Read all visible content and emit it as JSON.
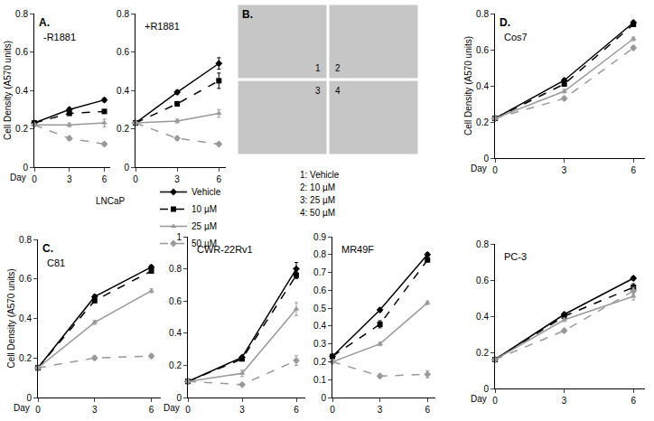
{
  "chart_data": [
    {
      "type": "line",
      "panel": "A.",
      "title": "-R1881",
      "y_label": "Cell Density (A570 units)",
      "x_label": "Day",
      "x": [
        0,
        3,
        6
      ],
      "xlim": [
        0,
        6.5
      ],
      "xticks": [
        0,
        3,
        6
      ],
      "ylim": [
        0,
        0.8
      ],
      "yticks": [
        0,
        0.2,
        0.4,
        0.6,
        0.8
      ],
      "series": [
        {
          "name": "Vehicle",
          "color": "#000000",
          "marker": "diamond",
          "line_style": "solid",
          "values": [
            0.23,
            0.3,
            0.35
          ],
          "errors": [
            0,
            0.01,
            0.01
          ]
        },
        {
          "name": "10 µM",
          "color": "#000000",
          "marker": "square",
          "line_style": "dash",
          "values": [
            0.23,
            0.28,
            0.29
          ],
          "errors": [
            0,
            0.01,
            0.01
          ]
        },
        {
          "name": "25 µM",
          "color": "#999999",
          "marker": "triangle",
          "line_style": "solid",
          "values": [
            0.22,
            0.22,
            0.23
          ],
          "errors": [
            0,
            0.01,
            0.02
          ]
        },
        {
          "name": "50 µM",
          "color": "#999999",
          "marker": "diamond",
          "line_style": "dash",
          "values": [
            0.22,
            0.15,
            0.12
          ],
          "errors": [
            0,
            0.01,
            0.01
          ]
        }
      ]
    },
    {
      "type": "line",
      "title": "+R1881",
      "annotations": [
        "LNCaP"
      ],
      "legend": "bottom right",
      "x": [
        0,
        3,
        6
      ],
      "xlim": [
        0,
        6.5
      ],
      "xticks": [
        0,
        3,
        6
      ],
      "ylim": [
        0,
        0.8
      ],
      "yticks": [
        0,
        0.2,
        0.4,
        0.6,
        0.8
      ],
      "series": [
        {
          "name": "Vehicle",
          "color": "#000000",
          "marker": "diamond",
          "line_style": "solid",
          "values": [
            0.23,
            0.39,
            0.54
          ],
          "errors": [
            0,
            0.01,
            0.03
          ]
        },
        {
          "name": "10 µM",
          "color": "#000000",
          "marker": "square",
          "line_style": "dash",
          "values": [
            0.23,
            0.33,
            0.45
          ],
          "errors": [
            0,
            0.01,
            0.04
          ]
        },
        {
          "name": "25 µM",
          "color": "#999999",
          "marker": "triangle",
          "line_style": "solid",
          "values": [
            0.23,
            0.24,
            0.28
          ],
          "errors": [
            0,
            0.01,
            0.02
          ]
        },
        {
          "name": "50 µM",
          "color": "#999999",
          "marker": "diamond",
          "line_style": "dash",
          "values": [
            0.23,
            0.15,
            0.12
          ],
          "errors": [
            0,
            0.01,
            0.01
          ]
        }
      ]
    },
    {
      "type": "line",
      "panel": "C.",
      "title": "C81",
      "y_label": "Cell Density (A570 units)",
      "x_label": "Day",
      "x": [
        0,
        3,
        6
      ],
      "xlim": [
        0,
        6.5
      ],
      "xticks": [
        0,
        3,
        6
      ],
      "ylim": [
        0,
        0.8
      ],
      "yticks": [
        0,
        0.2,
        0.4,
        0.6,
        0.8
      ],
      "series": [
        {
          "name": "Vehicle",
          "color": "#000000",
          "marker": "diamond",
          "line_style": "solid",
          "values": [
            0.15,
            0.51,
            0.66
          ],
          "errors": [
            0,
            0.01,
            0.01
          ]
        },
        {
          "name": "10 µM",
          "color": "#000000",
          "marker": "square",
          "line_style": "dash",
          "values": [
            0.15,
            0.49,
            0.64
          ],
          "errors": [
            0,
            0.01,
            0.01
          ]
        },
        {
          "name": "25 µM",
          "color": "#999999",
          "marker": "triangle",
          "line_style": "solid",
          "values": [
            0.15,
            0.38,
            0.54
          ],
          "errors": [
            0,
            0.01,
            0.01
          ]
        },
        {
          "name": "50 µM",
          "color": "#999999",
          "marker": "diamond",
          "line_style": "dash",
          "values": [
            0.15,
            0.2,
            0.21
          ],
          "errors": [
            0,
            0.01,
            0.01
          ]
        }
      ]
    },
    {
      "type": "line",
      "title": "CWR-22Rv1",
      "x_label": "Day",
      "x": [
        0,
        3,
        6
      ],
      "xlim": [
        0,
        6.5
      ],
      "xticks": [
        0,
        3,
        6
      ],
      "ylim": [
        0,
        1
      ],
      "yticks": [
        0,
        0.2,
        0.4,
        0.6,
        0.8,
        1
      ],
      "series": [
        {
          "name": "Vehicle",
          "color": "#000000",
          "marker": "diamond",
          "line_style": "solid",
          "values": [
            0.1,
            0.25,
            0.8
          ],
          "errors": [
            0,
            0.01,
            0.04
          ]
        },
        {
          "name": "10 µM",
          "color": "#000000",
          "marker": "square",
          "line_style": "dash",
          "values": [
            0.1,
            0.24,
            0.76
          ],
          "errors": [
            0,
            0.01,
            0.02
          ]
        },
        {
          "name": "25 µM",
          "color": "#999999",
          "marker": "triangle",
          "line_style": "solid",
          "values": [
            0.1,
            0.15,
            0.55
          ],
          "errors": [
            0,
            0.02,
            0.04
          ]
        },
        {
          "name": "50 µM",
          "color": "#999999",
          "marker": "diamond",
          "line_style": "dash",
          "values": [
            0.1,
            0.08,
            0.23
          ],
          "errors": [
            0,
            0.01,
            0.03
          ]
        }
      ]
    },
    {
      "type": "line",
      "title": "MR49F",
      "x": [
        0,
        3,
        6
      ],
      "xlim": [
        0,
        6.5
      ],
      "xticks": [
        0,
        3,
        6
      ],
      "ylim": [
        0,
        0.9
      ],
      "yticks": [
        0,
        0.1,
        0.2,
        0.3,
        0.4,
        0.5,
        0.6,
        0.7,
        0.8,
        0.9
      ],
      "series": [
        {
          "name": "Vehicle",
          "color": "#000000",
          "marker": "diamond",
          "line_style": "solid",
          "values": [
            0.23,
            0.49,
            0.8
          ],
          "errors": [
            0,
            0.01,
            0.01
          ]
        },
        {
          "name": "10 µM",
          "color": "#000000",
          "marker": "square",
          "line_style": "dash",
          "values": [
            0.23,
            0.41,
            0.77
          ],
          "errors": [
            0,
            0.02,
            0.01
          ]
        },
        {
          "name": "25 µM",
          "color": "#999999",
          "marker": "triangle",
          "line_style": "solid",
          "values": [
            0.2,
            0.3,
            0.53
          ],
          "errors": [
            0,
            0.01,
            0.01
          ]
        },
        {
          "name": "50 µM",
          "color": "#999999",
          "marker": "diamond",
          "line_style": "dash",
          "values": [
            0.2,
            0.12,
            0.13
          ],
          "errors": [
            0,
            0.01,
            0.02
          ]
        }
      ]
    },
    {
      "type": "line",
      "panel": "D.",
      "title": "Cos7",
      "y_label": "Cell Density (A570 units)",
      "x_label": "Day",
      "x": [
        0,
        3,
        6
      ],
      "xlim": [
        0,
        6.5
      ],
      "xticks": [
        0,
        3,
        6
      ],
      "ylim": [
        0,
        0.8
      ],
      "yticks": [
        0,
        0.2,
        0.4,
        0.6,
        0.8
      ],
      "series": [
        {
          "name": "Vehicle",
          "color": "#000000",
          "marker": "diamond",
          "line_style": "solid",
          "values": [
            0.22,
            0.43,
            0.75
          ],
          "errors": [
            0,
            0.01,
            0.01
          ]
        },
        {
          "name": "10 µM",
          "color": "#000000",
          "marker": "square",
          "line_style": "dash",
          "values": [
            0.22,
            0.41,
            0.74
          ],
          "errors": [
            0,
            0.01,
            0.01
          ]
        },
        {
          "name": "25 µM",
          "color": "#999999",
          "marker": "triangle",
          "line_style": "solid",
          "values": [
            0.22,
            0.37,
            0.66
          ],
          "errors": [
            0,
            0.01,
            0.01
          ]
        },
        {
          "name": "50 µM",
          "color": "#999999",
          "marker": "diamond",
          "line_style": "dash",
          "values": [
            0.22,
            0.33,
            0.61
          ],
          "errors": [
            0,
            0.01,
            0.01
          ]
        }
      ]
    },
    {
      "type": "line",
      "title": "PC-3",
      "x_label": "Day",
      "x": [
        0,
        3,
        6
      ],
      "xlim": [
        0,
        6.5
      ],
      "xticks": [
        0,
        3,
        6
      ],
      "ylim": [
        0,
        0.8
      ],
      "yticks": [
        0,
        0.2,
        0.4,
        0.6,
        0.8
      ],
      "series": [
        {
          "name": "Vehicle",
          "color": "#000000",
          "marker": "diamond",
          "line_style": "solid",
          "values": [
            0.16,
            0.41,
            0.61
          ],
          "errors": [
            0,
            0.01,
            0.01
          ]
        },
        {
          "name": "10 µM",
          "color": "#000000",
          "marker": "square",
          "line_style": "dash",
          "values": [
            0.16,
            0.4,
            0.56
          ],
          "errors": [
            0,
            0.01,
            0.02
          ]
        },
        {
          "name": "25 µM",
          "color": "#999999",
          "marker": "triangle",
          "line_style": "solid",
          "values": [
            0.16,
            0.38,
            0.51
          ],
          "errors": [
            0,
            0.01,
            0.02
          ]
        },
        {
          "name": "50 µM",
          "color": "#999999",
          "marker": "diamond",
          "line_style": "dash",
          "values": [
            0.16,
            0.32,
            0.54
          ],
          "errors": [
            0,
            0.01,
            0.02
          ]
        }
      ]
    }
  ],
  "panel_B": {
    "label": "B.",
    "images": [
      "1",
      "2",
      "3",
      "4"
    ],
    "key": [
      "1: Vehicle",
      "2: 10 µM",
      "3: 25 µM",
      "4: 50 µM"
    ]
  }
}
